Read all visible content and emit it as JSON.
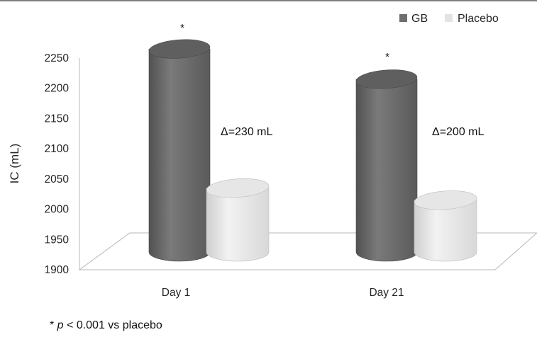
{
  "chart_data": {
    "type": "bar",
    "categories": [
      "Day 1",
      "Day 21"
    ],
    "series": [
      {
        "name": "GB",
        "values": [
          2265,
          2215
        ],
        "color": "#6e6e6e"
      },
      {
        "name": "Placebo",
        "values": [
          2035,
          2015
        ],
        "color": "#dedede"
      }
    ],
    "ylabel": "IC (mL)",
    "ylim": [
      1900,
      2250
    ],
    "yticks": [
      "1900",
      "1950",
      "2000",
      "2050",
      "2100",
      "2150",
      "2200",
      "2250"
    ],
    "annotations": [
      "Δ=230 mL",
      "Δ=200 mL"
    ],
    "significance_marks": [
      "*",
      "*"
    ],
    "legend_position": "top-right",
    "style": "3d-cylinder"
  },
  "footnote": {
    "star": "* ",
    "p": "p",
    "rest": " < 0.001 vs placebo"
  }
}
